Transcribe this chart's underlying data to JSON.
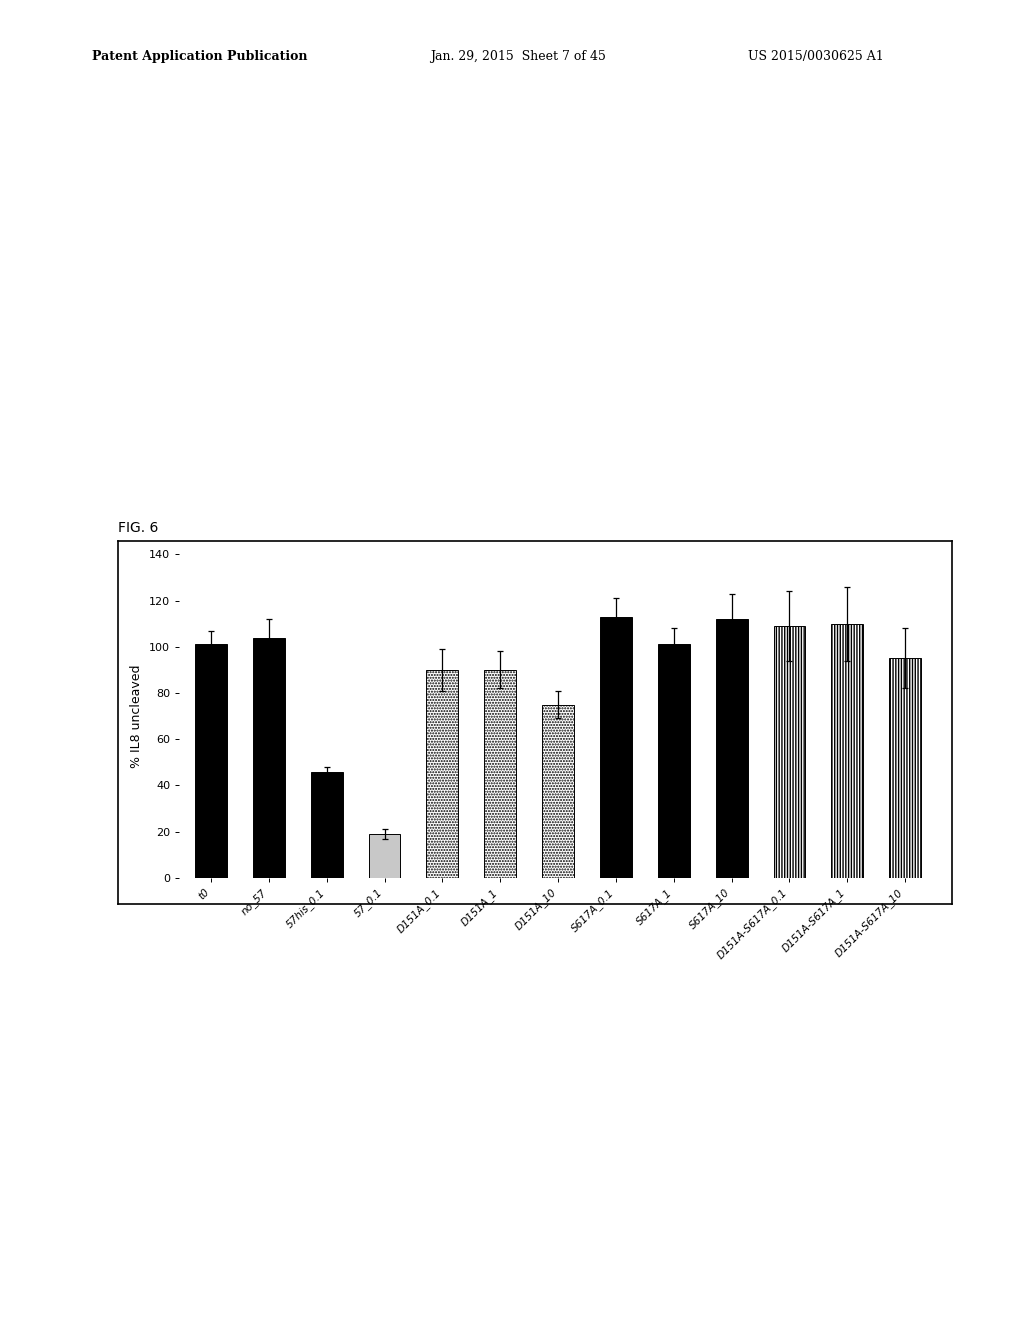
{
  "categories": [
    "t0",
    "no_57",
    "57his_0.1",
    "57_0.1",
    "D151A_0.1",
    "D151A_1",
    "D151A_10",
    "S617A_0.1",
    "S617A_1",
    "S617A_10",
    "D151A-S617A_0.1",
    "D151A-S617A_1",
    "D151A-S617A_10"
  ],
  "values": [
    101,
    104,
    46,
    19,
    90,
    90,
    75,
    113,
    101,
    112,
    109,
    110,
    95
  ],
  "errors": [
    6,
    8,
    2,
    2,
    9,
    8,
    6,
    8,
    7,
    11,
    15,
    16,
    13
  ],
  "bar_patterns": [
    "solid_black",
    "solid_black",
    "solid_black",
    "light_gray",
    "white_dot",
    "white_dot",
    "white_dot",
    "solid_black",
    "solid_black",
    "solid_black",
    "white_vline",
    "white_vline",
    "white_vline"
  ],
  "ylabel": "% IL8 uncleaved",
  "ylim": [
    0,
    140
  ],
  "yticks": [
    0,
    20,
    40,
    60,
    80,
    100,
    120,
    140
  ],
  "fig_label": "FIG. 6",
  "header_left": "Patent Application Publication",
  "header_mid": "Jan. 29, 2015  Sheet 7 of 45",
  "header_right": "US 2015/0030625 A1",
  "background_color": "#ffffff"
}
